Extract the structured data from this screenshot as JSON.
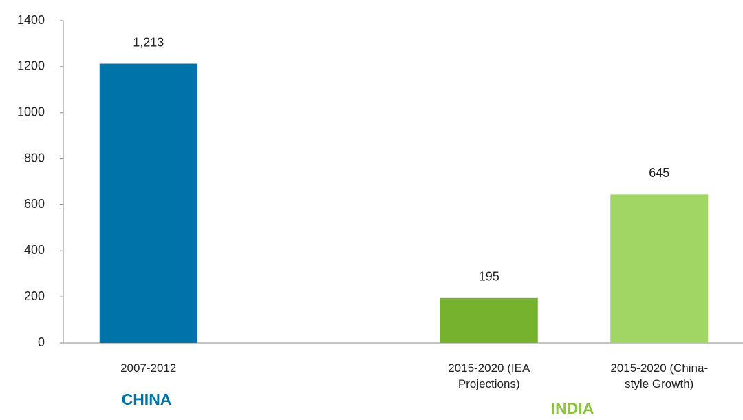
{
  "chart_data": {
    "type": "bar",
    "categories": [
      "2007-2012",
      null,
      "2015-2020 (IEA Projections)",
      "2015-2020 (China-style Growth)"
    ],
    "values": [
      1213,
      null,
      195,
      645
    ],
    "value_labels": [
      "1,213",
      null,
      "195",
      "645"
    ],
    "colors": [
      "#0074a9",
      null,
      "#76b22e",
      "#a2d664"
    ],
    "ylim": [
      0,
      1400
    ],
    "yticks": [
      0,
      200,
      400,
      600,
      800,
      1000,
      1200,
      1400
    ],
    "grid": false,
    "annotations": [
      {
        "text": "CHINA",
        "color": "#0074a9"
      },
      {
        "text": "INDIA",
        "color": "#8cc63f"
      }
    ]
  }
}
